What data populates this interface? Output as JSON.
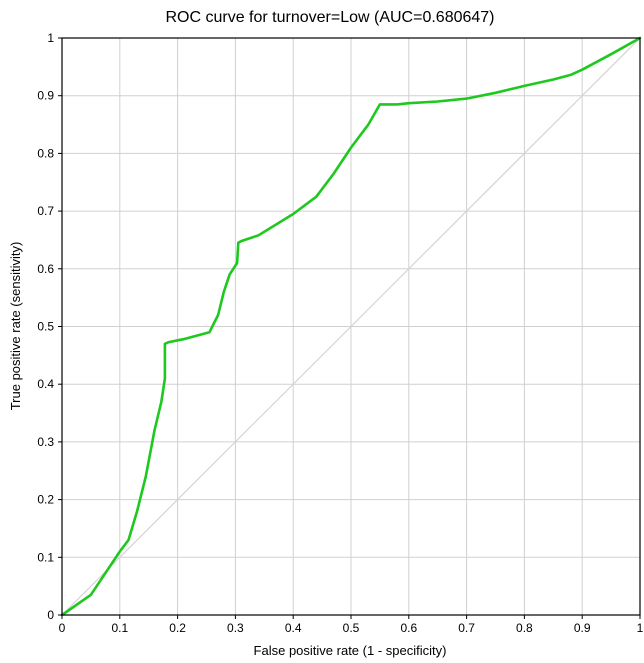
{
  "chart_data": {
    "type": "line",
    "title": "ROC curve for turnover=Low (AUC=0.680647)",
    "xlabel": "False positive rate (1 - specificity)",
    "ylabel": "True positive rate (sensitivity)",
    "xlim": [
      0,
      1
    ],
    "ylim": [
      0,
      1
    ],
    "grid": true,
    "x_ticks": [
      "0",
      "0.1",
      "0.2",
      "0.3",
      "0.4",
      "0.5",
      "0.6",
      "0.7",
      "0.8",
      "0.9",
      "1"
    ],
    "y_ticks": [
      "0",
      "0.1",
      "0.2",
      "0.3",
      "0.4",
      "0.5",
      "0.6",
      "0.7",
      "0.8",
      "0.9",
      "1"
    ],
    "series": [
      {
        "color": "#1ec81e",
        "x": [
          0,
          0.05,
          0.1,
          0.115,
          0.13,
          0.145,
          0.16,
          0.172,
          0.178,
          0.178,
          0.185,
          0.21,
          0.255,
          0.27,
          0.28,
          0.29,
          0.303,
          0.305,
          0.31,
          0.34,
          0.4,
          0.44,
          0.47,
          0.5,
          0.53,
          0.55,
          0.58,
          0.6,
          0.65,
          0.7,
          0.75,
          0.8,
          0.85,
          0.88,
          0.9,
          0.95,
          1.0
        ],
        "y": [
          0,
          0.035,
          0.11,
          0.13,
          0.18,
          0.24,
          0.32,
          0.37,
          0.41,
          0.47,
          0.473,
          0.478,
          0.49,
          0.52,
          0.56,
          0.59,
          0.61,
          0.645,
          0.648,
          0.658,
          0.695,
          0.725,
          0.765,
          0.81,
          0.85,
          0.885,
          0.885,
          0.887,
          0.89,
          0.895,
          0.905,
          0.917,
          0.928,
          0.936,
          0.945,
          0.972,
          1.0
        ]
      },
      {
        "color": "#d4d4d4",
        "x": [
          0,
          1
        ],
        "y": [
          0,
          1
        ]
      }
    ]
  }
}
